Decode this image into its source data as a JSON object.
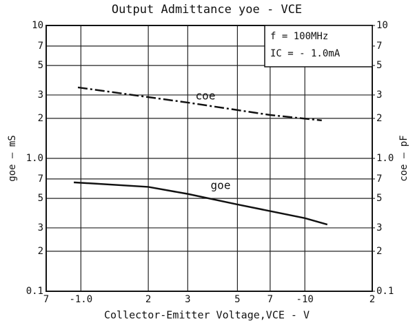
{
  "chart_data": {
    "type": "line",
    "title": "Output Admittance yoe - VCE",
    "xlabel": "Collector-Emitter Voltage,VCE - V",
    "ylabel": "goe — mS",
    "y2label": "coe — pF",
    "annotations": [
      "f = 100MHz",
      "IC = - 1.0mA"
    ],
    "xscale": "log",
    "yscale": "log",
    "grid": true,
    "xlim": [
      0.7,
      20
    ],
    "xticks": [
      {
        "value": 0.7,
        "label": "7"
      },
      {
        "value": 1,
        "label": "-1.0"
      },
      2,
      3,
      5,
      7,
      {
        "value": 10,
        "label": "-10"
      },
      {
        "value": 20,
        "label": "2"
      }
    ],
    "ylim": [
      0.1,
      10
    ],
    "yticks": [
      0.1,
      {
        "value": 0.2,
        "label": "2"
      },
      {
        "value": 0.3,
        "label": "3"
      },
      {
        "value": 0.5,
        "label": "5"
      },
      {
        "value": 0.7,
        "label": "7"
      },
      {
        "value": 1,
        "label": "1.0"
      },
      2,
      3,
      5,
      7,
      10
    ],
    "y2lim": [
      0.1,
      10
    ],
    "y2ticks": [
      0.1,
      {
        "value": 0.2,
        "label": "2"
      },
      {
        "value": 0.3,
        "label": "3"
      },
      {
        "value": 0.5,
        "label": "5"
      },
      {
        "value": 0.7,
        "label": "7"
      },
      {
        "value": 1,
        "label": "1.0"
      },
      2,
      3,
      5,
      7,
      10
    ],
    "series": [
      {
        "name": "coe",
        "color": "#111111",
        "linestyle": "dash-dot",
        "axis": "y2",
        "x": [
          0.97,
          3,
          7,
          11.9
        ],
        "values": [
          3.42,
          2.63,
          2.12,
          1.93
        ]
      },
      {
        "name": "goe",
        "color": "#111111",
        "linestyle": "solid",
        "x": [
          0.93,
          2,
          3,
          5,
          10,
          12.6
        ],
        "values": [
          0.66,
          0.61,
          0.54,
          0.45,
          0.355,
          0.318
        ]
      }
    ]
  }
}
